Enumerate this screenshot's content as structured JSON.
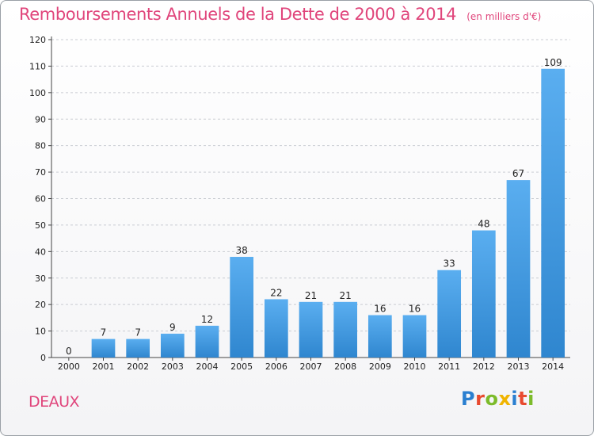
{
  "title": "Remboursements Annuels de la Dette de 2000 à 2014",
  "unit_note": "(en milliers d'€)",
  "place_name": "DEAUX",
  "logo": {
    "text": "Proxiti",
    "letter_colors": [
      "#2a7fd0",
      "#e84a2f",
      "#7cbb2a",
      "#f0b400",
      "#2a7fd0",
      "#e84a2f",
      "#7cbb2a"
    ]
  },
  "colors": {
    "title": "#e0457b",
    "bar_light": "#5aaef0",
    "bar_dark": "#2f86cf",
    "grid": "#c9ccd2"
  },
  "chart_data": {
    "type": "bar",
    "title": "Remboursements Annuels de la Dette de 2000 à 2014",
    "categories": [
      "2000",
      "2001",
      "2002",
      "2003",
      "2004",
      "2005",
      "2006",
      "2007",
      "2008",
      "2009",
      "2010",
      "2011",
      "2012",
      "2013",
      "2014"
    ],
    "values": [
      0,
      7,
      7,
      9,
      12,
      38,
      22,
      21,
      21,
      16,
      16,
      33,
      48,
      67,
      109
    ],
    "value_labels": [
      "0",
      "7",
      "7",
      "9",
      "12",
      "38",
      "22",
      "21",
      "21",
      "16",
      "16",
      "33",
      "48",
      "67",
      "109"
    ],
    "ylim": [
      0,
      120
    ],
    "yticks": [
      0,
      10,
      20,
      30,
      40,
      50,
      60,
      70,
      80,
      90,
      100,
      110,
      120
    ],
    "ytick_labels": [
      "0",
      "10",
      "20",
      "30",
      "40",
      "50",
      "60",
      "70",
      "80",
      "90",
      "100",
      "110",
      "120"
    ],
    "grid": "horizontal-dashed",
    "legend": "none"
  }
}
